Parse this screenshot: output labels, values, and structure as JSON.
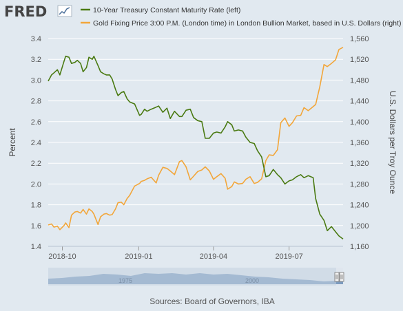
{
  "brand": {
    "logo_text": "FRED"
  },
  "colors": {
    "background": "#e1e9f0",
    "plot_background": "#e1e9f0",
    "grid": "#ffffff",
    "treasury_series": "#4a7a12",
    "gold_series": "#f2a63a",
    "navigator_fill": "#6b8db5",
    "navigator_mask": "#c5d3e2"
  },
  "chart_data": {
    "type": "line",
    "title": "",
    "xlabel": "",
    "x_ticks": [
      "2018-10",
      "2019-01",
      "2019-04",
      "2019-07"
    ],
    "x_range": [
      "2018-09-14",
      "2019-09-04"
    ],
    "y_left": {
      "label": "Percent",
      "range": [
        1.4,
        3.4
      ],
      "ticks": [
        "1.4",
        "1.6",
        "1.8",
        "2.0",
        "2.2",
        "2.4",
        "2.6",
        "2.8",
        "3.0",
        "3.2",
        "3.4"
      ]
    },
    "y_right": {
      "label": "U.S. Dollars per Troy Ounce",
      "range": [
        1160,
        1560
      ],
      "ticks": [
        "1,160",
        "1,200",
        "1,240",
        "1,280",
        "1,320",
        "1,360",
        "1,400",
        "1,440",
        "1,480",
        "1,520",
        "1,560"
      ]
    },
    "grid": true,
    "legend_placement": "top",
    "series": [
      {
        "name": "10-Year Treasury Constant Maturity Rate (left)",
        "axis": "left",
        "color": "#4a7a12",
        "x": [
          "2018-09-14",
          "2018-09-18",
          "2018-09-21",
          "2018-09-25",
          "2018-09-28",
          "2018-10-03",
          "2018-10-05",
          "2018-10-09",
          "2018-10-12",
          "2018-10-16",
          "2018-10-19",
          "2018-10-23",
          "2018-10-26",
          "2018-10-30",
          "2018-11-02",
          "2018-11-06",
          "2018-11-08",
          "2018-11-13",
          "2018-11-16",
          "2018-11-20",
          "2018-11-23",
          "2018-11-27",
          "2018-11-30",
          "2018-12-04",
          "2018-12-07",
          "2018-12-11",
          "2018-12-14",
          "2018-12-18",
          "2018-12-21",
          "2018-12-27",
          "2019-01-02",
          "2019-01-04",
          "2019-01-08",
          "2019-01-11",
          "2019-01-16",
          "2019-01-22",
          "2019-01-25",
          "2019-01-30",
          "2019-02-04",
          "2019-02-08",
          "2019-02-13",
          "2019-02-19",
          "2019-02-22",
          "2019-02-27",
          "2019-03-04",
          "2019-03-08",
          "2019-03-13",
          "2019-03-18",
          "2019-03-22",
          "2019-03-27",
          "2019-04-01",
          "2019-04-05",
          "2019-04-10",
          "2019-04-15",
          "2019-04-18",
          "2019-04-23",
          "2019-04-26",
          "2019-05-01",
          "2019-05-06",
          "2019-05-10",
          "2019-05-15",
          "2019-05-20",
          "2019-05-24",
          "2019-05-29",
          "2019-06-03",
          "2019-06-07",
          "2019-06-12",
          "2019-06-17",
          "2019-06-21",
          "2019-06-26",
          "2019-07-01",
          "2019-07-05",
          "2019-07-10",
          "2019-07-15",
          "2019-07-19",
          "2019-07-24",
          "2019-07-30",
          "2019-08-02",
          "2019-08-07",
          "2019-08-12",
          "2019-08-16",
          "2019-08-21",
          "2019-08-26",
          "2019-08-30",
          "2019-09-04"
        ],
        "values": [
          2.99,
          3.05,
          3.07,
          3.1,
          3.05,
          3.18,
          3.23,
          3.22,
          3.16,
          3.17,
          3.19,
          3.16,
          3.08,
          3.12,
          3.22,
          3.2,
          3.23,
          3.14,
          3.08,
          3.06,
          3.05,
          3.05,
          3.01,
          2.91,
          2.85,
          2.88,
          2.89,
          2.82,
          2.79,
          2.77,
          2.66,
          2.67,
          2.72,
          2.7,
          2.72,
          2.74,
          2.75,
          2.69,
          2.73,
          2.63,
          2.7,
          2.65,
          2.65,
          2.71,
          2.72,
          2.64,
          2.61,
          2.6,
          2.44,
          2.44,
          2.49,
          2.5,
          2.49,
          2.55,
          2.6,
          2.57,
          2.51,
          2.52,
          2.51,
          2.45,
          2.4,
          2.39,
          2.32,
          2.26,
          2.07,
          2.08,
          2.14,
          2.09,
          2.06,
          2.0,
          2.03,
          2.04,
          2.07,
          2.09,
          2.06,
          2.08,
          2.06,
          1.86,
          1.71,
          1.65,
          1.55,
          1.59,
          1.54,
          1.5,
          1.47
        ]
      },
      {
        "name": "Gold Fixing Price 3:00 P.M. (London time) in London Bullion Market, based in U.S. Dollars (right)",
        "axis": "right",
        "color": "#f2a63a",
        "x": [
          "2018-09-14",
          "2018-09-18",
          "2018-09-21",
          "2018-09-25",
          "2018-09-28",
          "2018-10-03",
          "2018-10-05",
          "2018-10-09",
          "2018-10-12",
          "2018-10-16",
          "2018-10-19",
          "2018-10-23",
          "2018-10-26",
          "2018-10-30",
          "2018-11-02",
          "2018-11-06",
          "2018-11-08",
          "2018-11-13",
          "2018-11-16",
          "2018-11-20",
          "2018-11-23",
          "2018-11-27",
          "2018-11-30",
          "2018-12-04",
          "2018-12-07",
          "2018-12-11",
          "2018-12-14",
          "2018-12-18",
          "2018-12-21",
          "2018-12-27",
          "2019-01-02",
          "2019-01-04",
          "2019-01-08",
          "2019-01-11",
          "2019-01-16",
          "2019-01-22",
          "2019-01-25",
          "2019-01-30",
          "2019-02-04",
          "2019-02-08",
          "2019-02-13",
          "2019-02-19",
          "2019-02-22",
          "2019-02-27",
          "2019-03-04",
          "2019-03-08",
          "2019-03-13",
          "2019-03-18",
          "2019-03-22",
          "2019-03-27",
          "2019-04-01",
          "2019-04-05",
          "2019-04-10",
          "2019-04-15",
          "2019-04-18",
          "2019-04-23",
          "2019-04-26",
          "2019-05-01",
          "2019-05-06",
          "2019-05-10",
          "2019-05-15",
          "2019-05-20",
          "2019-05-24",
          "2019-05-29",
          "2019-06-03",
          "2019-06-07",
          "2019-06-12",
          "2019-06-17",
          "2019-06-21",
          "2019-06-26",
          "2019-07-01",
          "2019-07-05",
          "2019-07-10",
          "2019-07-15",
          "2019-07-19",
          "2019-07-24",
          "2019-07-30",
          "2019-08-02",
          "2019-08-07",
          "2019-08-12",
          "2019-08-16",
          "2019-08-21",
          "2019-08-26",
          "2019-08-30",
          "2019-09-04"
        ],
        "values": [
          1201,
          1203,
          1197,
          1199,
          1192,
          1200,
          1205,
          1196,
          1220,
          1226,
          1227,
          1224,
          1231,
          1222,
          1232,
          1227,
          1222,
          1202,
          1217,
          1222,
          1223,
          1220,
          1221,
          1232,
          1244,
          1245,
          1240,
          1252,
          1258,
          1276,
          1281,
          1285,
          1287,
          1290,
          1293,
          1282,
          1297,
          1312,
          1310,
          1305,
          1298,
          1323,
          1325,
          1313,
          1288,
          1295,
          1304,
          1307,
          1313,
          1305,
          1289,
          1294,
          1300,
          1291,
          1270,
          1275,
          1284,
          1280,
          1281,
          1289,
          1294,
          1281,
          1283,
          1290,
          1325,
          1336,
          1335,
          1346,
          1398,
          1407,
          1391,
          1398,
          1411,
          1412,
          1427,
          1421,
          1429,
          1433,
          1467,
          1510,
          1506,
          1512,
          1519,
          1539,
          1543
        ]
      }
    ]
  },
  "navigator": {
    "left_label": "1975",
    "right_label": "2000"
  },
  "source": {
    "text": "Sources: Board of Governors, IBA"
  }
}
